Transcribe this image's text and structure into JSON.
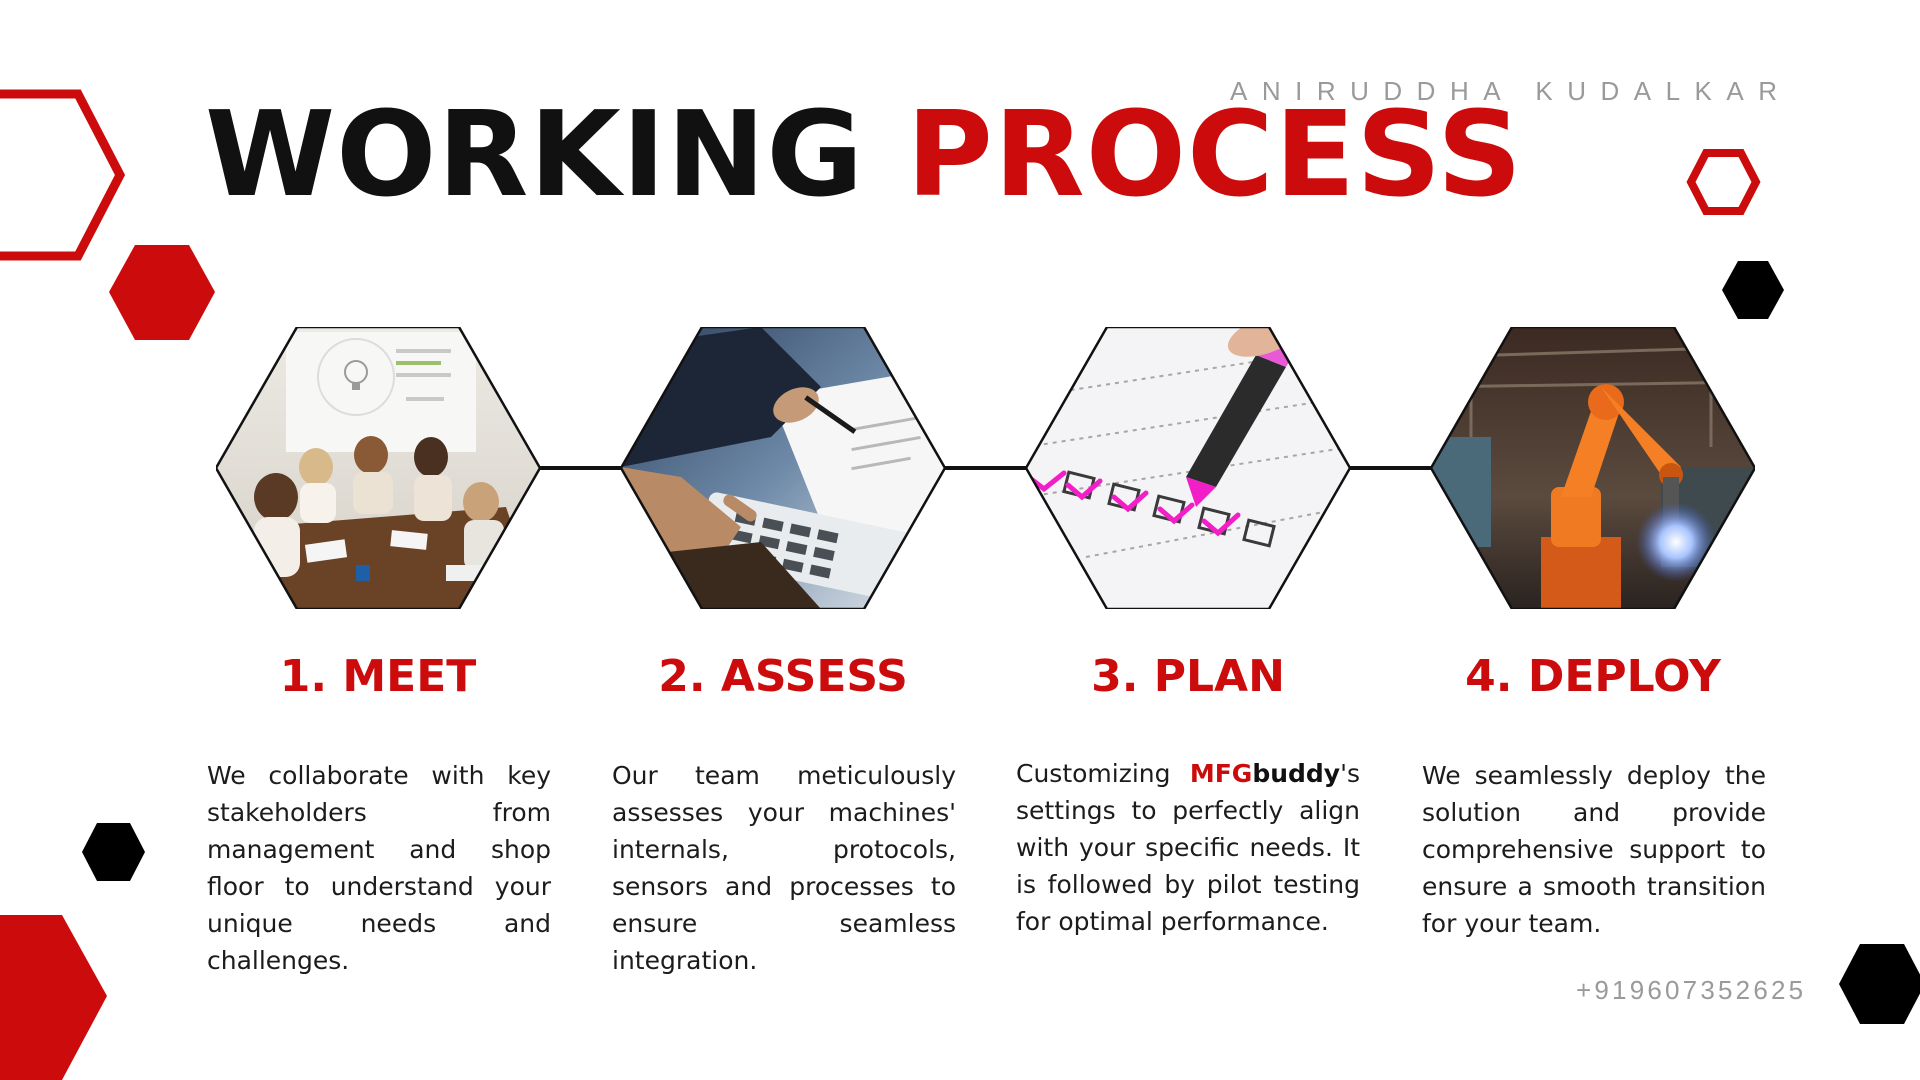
{
  "header": {
    "author": "ANIRUDDHA KUDALKAR",
    "title_part1": "WORKING",
    "title_part2": "PROCESS"
  },
  "steps": [
    {
      "title": "1. MEET",
      "description": "We collaborate with key stakeholders from management and shop floor to understand your unique needs and challenges.",
      "image": "team-meeting-photo"
    },
    {
      "title": "2. ASSESS",
      "description": "Our team meticulously assesses your machines' internals, protocols, sensors and processes to ensure seamless integration.",
      "image": "calculator-documents-photo"
    },
    {
      "title": "3. PLAN",
      "desc_prefix": "Customizing",
      "brand_mfg": "MFG",
      "brand_buddy": "buddy",
      "desc_suffix": "'s settings to perfectly align with your specific needs. It is followed by pilot testing for optimal performance.",
      "image": "checklist-highlighter-photo"
    },
    {
      "title": "4. DEPLOY",
      "description": "We seamlessly deploy the solution and provide comprehensive support to ensure a smooth transition for your team.",
      "image": "industrial-robot-arm-photo"
    }
  ],
  "footer": {
    "phone": "+919607352625"
  },
  "colors": {
    "accent_red": "#cc0c0c",
    "black": "#111111",
    "muted_gray": "#9a9a9a"
  }
}
